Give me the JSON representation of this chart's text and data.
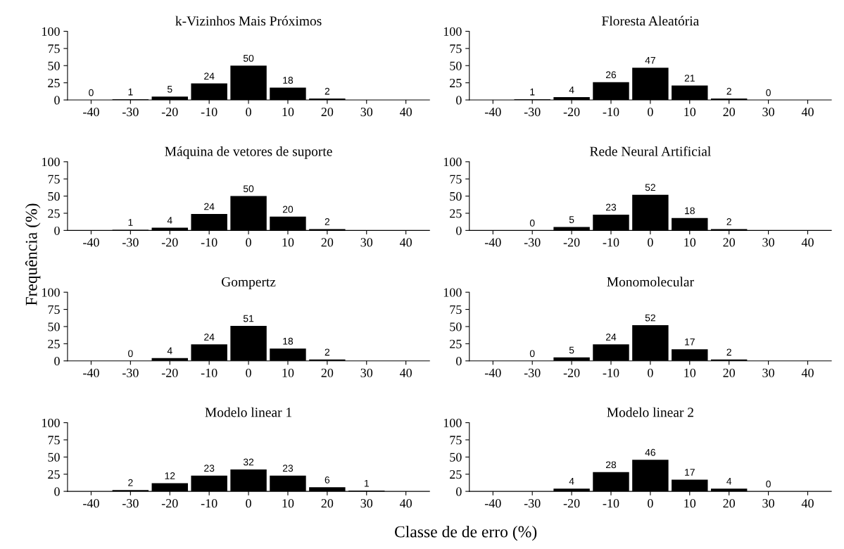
{
  "chart_data": [
    {
      "type": "bar",
      "title": "k-Vizinhos Mais Próximos",
      "categories": [
        "-40",
        "-30",
        "-20",
        "-10",
        "0",
        "10",
        "20",
        "30",
        "40"
      ],
      "values": [
        0,
        1,
        5,
        24,
        50,
        18,
        2,
        null,
        null
      ],
      "color": "#000000",
      "ylim": [
        0,
        100
      ],
      "yticks": [
        0,
        25,
        50,
        75,
        100
      ],
      "data_labels": true
    },
    {
      "type": "bar",
      "title": "Floresta Aleatória",
      "categories": [
        "-40",
        "-30",
        "-20",
        "-10",
        "0",
        "10",
        "20",
        "30",
        "40"
      ],
      "values": [
        null,
        1,
        4,
        26,
        47,
        21,
        2,
        0,
        null
      ],
      "color": "#000000",
      "ylim": [
        0,
        100
      ],
      "yticks": [
        0,
        25,
        50,
        75,
        100
      ],
      "data_labels": true
    },
    {
      "type": "bar",
      "title": "Máquina de vetores de suporte",
      "ylabel": "Frequência (%)",
      "categories": [
        "-40",
        "-30",
        "-20",
        "-10",
        "0",
        "10",
        "20",
        "30",
        "40"
      ],
      "values": [
        null,
        1,
        4,
        24,
        50,
        20,
        2,
        null,
        null
      ],
      "color": "#000000",
      "ylim": [
        0,
        100
      ],
      "yticks": [
        0,
        25,
        50,
        75,
        100
      ],
      "data_labels": true
    },
    {
      "type": "bar",
      "title": "Rede Neural Artificial",
      "categories": [
        "-40",
        "-30",
        "-20",
        "-10",
        "0",
        "10",
        "20",
        "30",
        "40"
      ],
      "values": [
        null,
        0,
        5,
        23,
        52,
        18,
        2,
        null,
        null
      ],
      "color": "#000000",
      "ylim": [
        0,
        100
      ],
      "yticks": [
        0,
        25,
        50,
        75,
        100
      ],
      "data_labels": true
    },
    {
      "type": "bar",
      "title": "Gompertz",
      "categories": [
        "-40",
        "-30",
        "-20",
        "-10",
        "0",
        "10",
        "20",
        "30",
        "40"
      ],
      "values": [
        null,
        0,
        4,
        24,
        51,
        18,
        2,
        null,
        null
      ],
      "color": "#000000",
      "ylim": [
        0,
        100
      ],
      "yticks": [
        0,
        25,
        50,
        75,
        100
      ],
      "data_labels": true
    },
    {
      "type": "bar",
      "title": "Monomolecular",
      "categories": [
        "-40",
        "-30",
        "-20",
        "-10",
        "0",
        "10",
        "20",
        "30",
        "40"
      ],
      "values": [
        null,
        0,
        5,
        24,
        52,
        17,
        2,
        null,
        null
      ],
      "color": "#000000",
      "ylim": [
        0,
        100
      ],
      "yticks": [
        0,
        25,
        50,
        75,
        100
      ],
      "data_labels": true
    },
    {
      "type": "bar",
      "title": "Modelo linear 1",
      "xlabel": "Classe de de erro (%)",
      "categories": [
        "-40",
        "-30",
        "-20",
        "-10",
        "0",
        "10",
        "20",
        "30",
        "40"
      ],
      "values": [
        null,
        2,
        12,
        23,
        32,
        23,
        6,
        1,
        null
      ],
      "color": "#000000",
      "ylim": [
        0,
        100
      ],
      "yticks": [
        0,
        25,
        50,
        75,
        100
      ],
      "data_labels": true
    },
    {
      "type": "bar",
      "title": "Modelo linear 2",
      "categories": [
        "-40",
        "-30",
        "-20",
        "-10",
        "0",
        "10",
        "20",
        "30",
        "40"
      ],
      "values": [
        null,
        null,
        4,
        28,
        46,
        17,
        4,
        0,
        null
      ],
      "color": "#000000",
      "ylim": [
        0,
        100
      ],
      "yticks": [
        0,
        25,
        50,
        75,
        100
      ],
      "data_labels": true
    }
  ]
}
